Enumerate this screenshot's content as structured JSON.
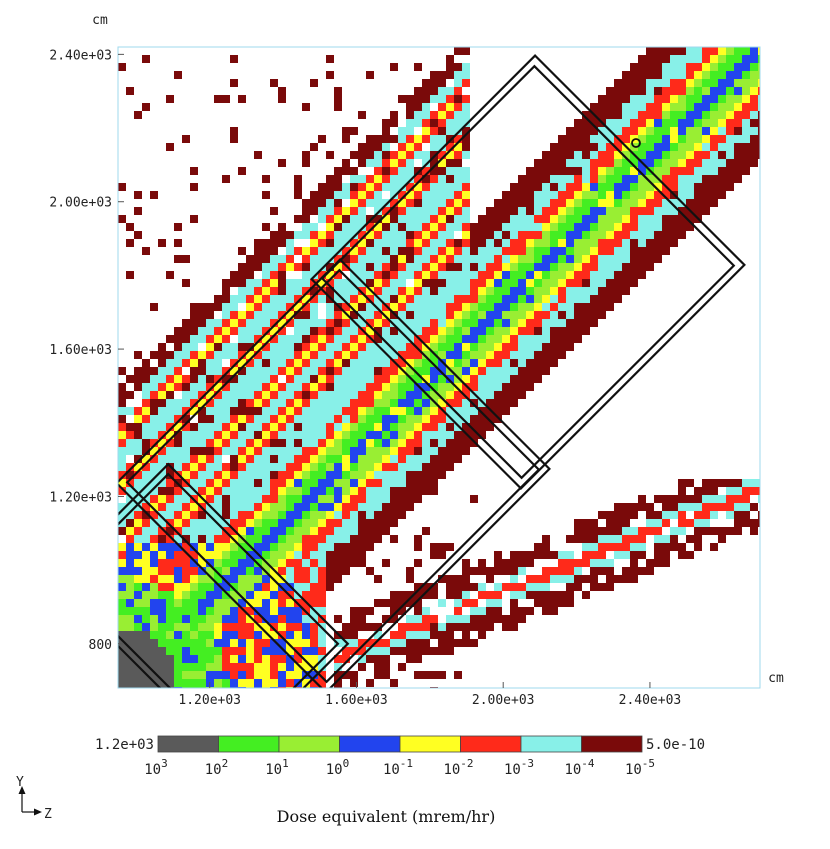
{
  "chart_data": {
    "type": "heatmap",
    "x_unit": "cm",
    "y_unit": "cm",
    "x_ticks": [
      {
        "value": 1200,
        "label": "1.20e+03"
      },
      {
        "value": 1600,
        "label": "1.60e+03"
      },
      {
        "value": 2000,
        "label": "2.00e+03"
      },
      {
        "value": 2400,
        "label": "2.40e+03"
      }
    ],
    "y_ticks": [
      {
        "value": 800,
        "label": "800"
      },
      {
        "value": 1200,
        "label": "1.20e+03"
      },
      {
        "value": 1600,
        "label": "1.60e+03"
      },
      {
        "value": 2000,
        "label": "2.00e+03"
      },
      {
        "value": 2400,
        "label": "2.40e+03"
      }
    ],
    "xlim": [
      950,
      2700
    ],
    "ylim": [
      680,
      2420
    ],
    "colorbar": {
      "title": "Dose equivalent (mrem/hr)",
      "max_label": "1.2e+03",
      "min_label": "5.0e-10",
      "bins": [
        {
          "color": "#5a5a5a",
          "from": "10^3",
          "to": "10^2"
        },
        {
          "color": "#44ee22",
          "from": "10^2",
          "to": "10^1"
        },
        {
          "color": "#99ee33",
          "from": "10^1",
          "to": "10^0"
        },
        {
          "color": "#2244ee",
          "from": "10^0",
          "to": "10^-1"
        },
        {
          "color": "#ffff22",
          "from": "10^-1",
          "to": "10^-2"
        },
        {
          "color": "#ff2a1a",
          "from": "10^-2",
          "to": "10^-3"
        },
        {
          "color": "#88f0e8",
          "from": "10^-3",
          "to": "10^-4"
        },
        {
          "color": "#7a0a0a",
          "from": "10^-4",
          "to": "10^-5"
        }
      ],
      "tick_labels": [
        {
          "base": "10",
          "exp": "3"
        },
        {
          "base": "10",
          "exp": "2"
        },
        {
          "base": "10",
          "exp": "1"
        },
        {
          "base": "10",
          "exp": "0"
        },
        {
          "base": "10",
          "exp": "-1"
        },
        {
          "base": "10",
          "exp": "-2"
        },
        {
          "base": "10",
          "exp": "-3"
        },
        {
          "base": "10",
          "exp": "-4"
        },
        {
          "base": "10",
          "exp": "-5"
        }
      ]
    },
    "orientation": {
      "up_axis": "Y",
      "right_axis": "Z"
    }
  }
}
